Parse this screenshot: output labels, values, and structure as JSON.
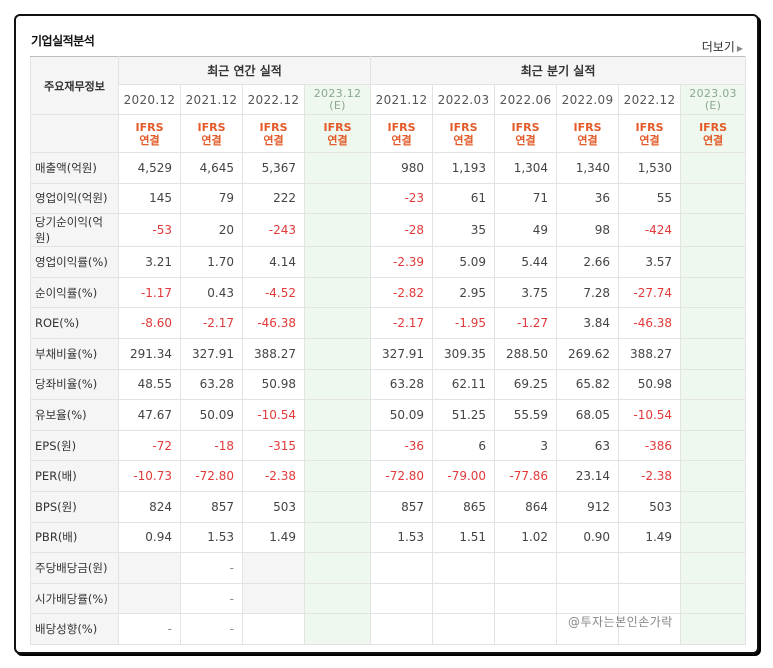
{
  "title": "기업실적분석",
  "more_label": "더보기",
  "row_header": "주요재무정보",
  "groups": {
    "annual": "최근 연간 실적",
    "quarterly": "최근 분기 실적"
  },
  "periods": [
    {
      "label": "2020.12",
      "est": false,
      "sub": ""
    },
    {
      "label": "2021.12",
      "est": false,
      "sub": ""
    },
    {
      "label": "2022.12",
      "est": false,
      "sub": ""
    },
    {
      "label": "2023.12",
      "est": true,
      "sub": "(E)"
    },
    {
      "label": "2021.12",
      "est": false,
      "sub": ""
    },
    {
      "label": "2022.03",
      "est": false,
      "sub": ""
    },
    {
      "label": "2022.06",
      "est": false,
      "sub": ""
    },
    {
      "label": "2022.09",
      "est": false,
      "sub": ""
    },
    {
      "label": "2022.12",
      "est": false,
      "sub": ""
    },
    {
      "label": "2023.03",
      "est": true,
      "sub": "(E)"
    }
  ],
  "ifrs": {
    "l1": "IFRS",
    "l2": "연결"
  },
  "rows": [
    {
      "label": "매출액(억원)",
      "values": [
        "4,529",
        "4,645",
        "5,367",
        "",
        "980",
        "1,193",
        "1,304",
        "1,340",
        "1,530",
        ""
      ]
    },
    {
      "label": "영업이익(억원)",
      "values": [
        "145",
        "79",
        "222",
        "",
        "-23",
        "61",
        "71",
        "36",
        "55",
        ""
      ]
    },
    {
      "label": "당기순이익(억원)",
      "values": [
        "-53",
        "20",
        "-243",
        "",
        "-28",
        "35",
        "49",
        "98",
        "-424",
        ""
      ]
    },
    {
      "label": "영업이익률(%)",
      "values": [
        "3.21",
        "1.70",
        "4.14",
        "",
        "-2.39",
        "5.09",
        "5.44",
        "2.66",
        "3.57",
        ""
      ]
    },
    {
      "label": "순이익률(%)",
      "values": [
        "-1.17",
        "0.43",
        "-4.52",
        "",
        "-2.82",
        "2.95",
        "3.75",
        "7.28",
        "-27.74",
        ""
      ]
    },
    {
      "label": "ROE(%)",
      "values": [
        "-8.60",
        "-2.17",
        "-46.38",
        "",
        "-2.17",
        "-1.95",
        "-1.27",
        "3.84",
        "-46.38",
        ""
      ]
    },
    {
      "label": "부채비율(%)",
      "values": [
        "291.34",
        "327.91",
        "388.27",
        "",
        "327.91",
        "309.35",
        "288.50",
        "269.62",
        "388.27",
        ""
      ]
    },
    {
      "label": "당좌비율(%)",
      "values": [
        "48.55",
        "63.28",
        "50.98",
        "",
        "63.28",
        "62.11",
        "69.25",
        "65.82",
        "50.98",
        ""
      ]
    },
    {
      "label": "유보율(%)",
      "values": [
        "47.67",
        "50.09",
        "-10.54",
        "",
        "50.09",
        "51.25",
        "55.59",
        "68.05",
        "-10.54",
        ""
      ]
    },
    {
      "label": "EPS(원)",
      "values": [
        "-72",
        "-18",
        "-315",
        "",
        "-36",
        "6",
        "3",
        "63",
        "-386",
        ""
      ]
    },
    {
      "label": "PER(배)",
      "values": [
        "-10.73",
        "-72.80",
        "-2.38",
        "",
        "-72.80",
        "-79.00",
        "-77.86",
        "23.14",
        "-2.38",
        ""
      ]
    },
    {
      "label": "BPS(원)",
      "values": [
        "824",
        "857",
        "503",
        "",
        "857",
        "865",
        "864",
        "912",
        "503",
        ""
      ]
    },
    {
      "label": "PBR(배)",
      "values": [
        "0.94",
        "1.53",
        "1.49",
        "",
        "1.53",
        "1.51",
        "1.02",
        "0.90",
        "1.49",
        ""
      ]
    },
    {
      "label": "주당배당금(원)",
      "values": [
        "",
        "-",
        "",
        "",
        "",
        "",
        "",
        "",
        "",
        ""
      ]
    },
    {
      "label": "시가배당률(%)",
      "values": [
        "",
        "-",
        "",
        "",
        "",
        "",
        "",
        "",
        "",
        ""
      ]
    },
    {
      "label": "배당성향(%)",
      "values": [
        "-",
        "-",
        "",
        "",
        "",
        "",
        "",
        "",
        "",
        ""
      ]
    }
  ],
  "watermark": "@투자는본인손가락"
}
